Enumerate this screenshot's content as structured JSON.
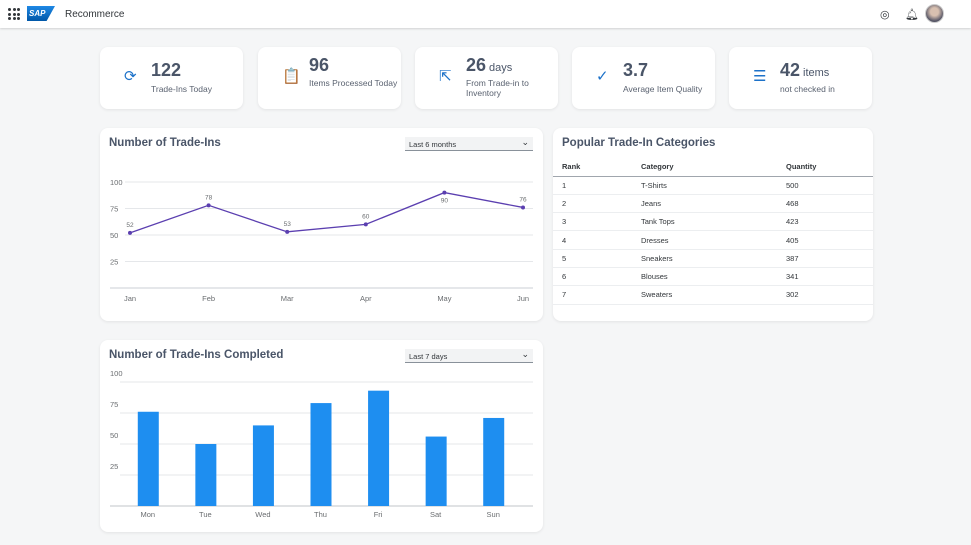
{
  "header": {
    "app_title": "Recommerce",
    "logo": "SAP",
    "icons": [
      "grid-menu-icon",
      "help-icon",
      "bell-icon",
      "avatar"
    ]
  },
  "kpis": [
    {
      "icon": "refresh-icon",
      "glyph": "⟳",
      "value": "122",
      "unit": "",
      "label": "Trade-Ins Today"
    },
    {
      "icon": "clipboard-check-icon",
      "glyph": "📋",
      "value": "96",
      "unit": "",
      "label": "Items Processed Today"
    },
    {
      "icon": "arrow-out-icon",
      "glyph": "⇱",
      "value": "26",
      "unit": "days",
      "label": "From Trade-in to Inventory"
    },
    {
      "icon": "check-circle-icon",
      "glyph": "✓",
      "value": "3.7",
      "unit": "",
      "label": "Average Item Quality"
    },
    {
      "icon": "clipboard-list-icon",
      "glyph": "☰",
      "value": "42",
      "unit": "items",
      "label": "not checked in"
    }
  ],
  "line_panel": {
    "title": "Number of Trade-Ins",
    "select": "Last 6 months"
  },
  "table_panel": {
    "title": "Popular Trade-In Categories",
    "columns": [
      "Rank",
      "Category",
      "Quantity"
    ],
    "rows": [
      [
        "1",
        "T-Shirts",
        "500"
      ],
      [
        "2",
        "Jeans",
        "468"
      ],
      [
        "3",
        "Tank Tops",
        "423"
      ],
      [
        "4",
        "Dresses",
        "405"
      ],
      [
        "5",
        "Sneakers",
        "387"
      ],
      [
        "6",
        "Blouses",
        "341"
      ],
      [
        "7",
        "Sweaters",
        "302"
      ]
    ]
  },
  "bar_panel": {
    "title": "Number of Trade-Ins Completed",
    "select": "Last 7 days"
  },
  "chart_data": [
    {
      "type": "line",
      "title": "Number of Trade-Ins",
      "categories": [
        "Jan",
        "Feb",
        "Mar",
        "Apr",
        "May",
        "Jun"
      ],
      "values": [
        52,
        78,
        53,
        60,
        90,
        76
      ],
      "yticks": [
        25,
        50,
        75,
        100
      ],
      "ylim": [
        0,
        100
      ],
      "color": "#5b3fb0",
      "data_labels": true
    },
    {
      "type": "bar",
      "title": "Number of Trade-Ins Completed",
      "categories": [
        "Mon",
        "Tue",
        "Wed",
        "Thu",
        "Fri",
        "Sat",
        "Sun"
      ],
      "values": [
        76,
        50,
        65,
        83,
        93,
        56,
        71
      ],
      "yticks": [
        25,
        50,
        75,
        100
      ],
      "ylim": [
        0,
        100
      ],
      "color": "#1e8ef0"
    }
  ]
}
